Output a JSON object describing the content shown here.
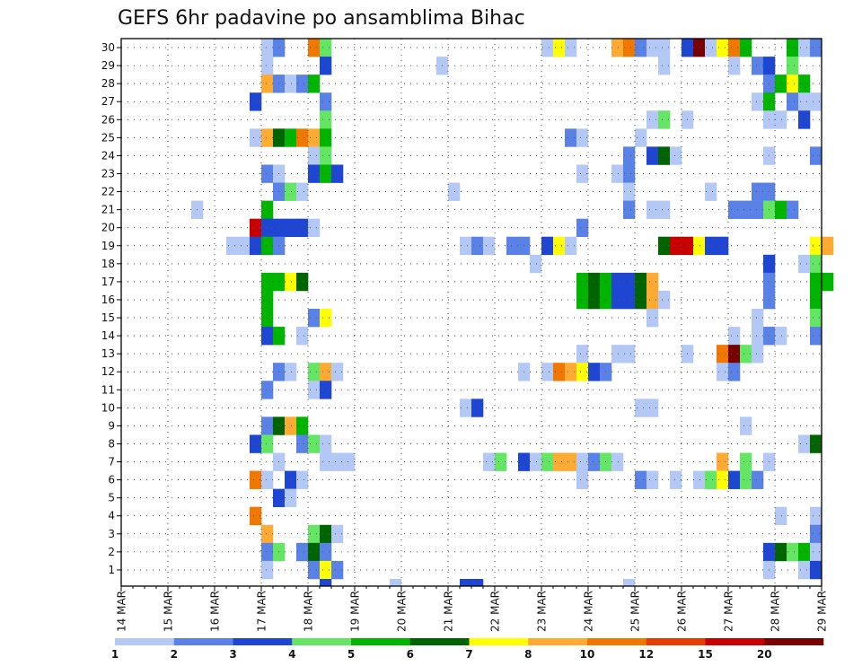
{
  "chart_data": {
    "type": "heatmap",
    "title": "GEFS 6hr padavine po ansamblima Bihac",
    "xlabel": "",
    "ylabel": "",
    "y_members": [
      "1",
      "2",
      "3",
      "4",
      "5",
      "6",
      "7",
      "8",
      "9",
      "10",
      "11",
      "12",
      "13",
      "14",
      "15",
      "16",
      "17",
      "18",
      "19",
      "20",
      "21",
      "22",
      "23",
      "24",
      "25",
      "26",
      "27",
      "28",
      "29",
      "30"
    ],
    "x_tick_labels": [
      "14 MAR",
      "15 MAR",
      "16 MAR",
      "17 MAR",
      "18 MAR",
      "19 MAR",
      "20 MAR",
      "21 MAR",
      "22 MAR",
      "23 MAR",
      "24 MAR",
      "25 MAR",
      "26 MAR",
      "27 MAR",
      "28 MAR",
      "29 MAR"
    ],
    "steps_per_day": 4,
    "legend": {
      "thresholds": [
        "1",
        "2",
        "3",
        "4",
        "5",
        "6",
        "7",
        "8",
        "10",
        "12",
        "15",
        "20"
      ],
      "colors": [
        "#b4c8f5",
        "#5a82e6",
        "#1e46d2",
        "#64e664",
        "#00b400",
        "#006400",
        "#ffff00",
        "#ffaa32",
        "#f07800",
        "#e63c00",
        "#c80000",
        "#780000"
      ]
    },
    "cells": [
      [
        30,
        12,
        1
      ],
      [
        30,
        13,
        2
      ],
      [
        30,
        16,
        9
      ],
      [
        30,
        17,
        4
      ],
      [
        30,
        36,
        1
      ],
      [
        30,
        37,
        7
      ],
      [
        30,
        38,
        1
      ],
      [
        30,
        42,
        8
      ],
      [
        30,
        43,
        9
      ],
      [
        30,
        44,
        2
      ],
      [
        30,
        45,
        1
      ],
      [
        30,
        46,
        1
      ],
      [
        30,
        48,
        3
      ],
      [
        30,
        49,
        12
      ],
      [
        30,
        50,
        1
      ],
      [
        30,
        51,
        7
      ],
      [
        30,
        52,
        9
      ],
      [
        30,
        53,
        5
      ],
      [
        30,
        57,
        5
      ],
      [
        30,
        58,
        1
      ],
      [
        30,
        59,
        2
      ],
      [
        29,
        12,
        1
      ],
      [
        29,
        17,
        3
      ],
      [
        29,
        27,
        1
      ],
      [
        29,
        46,
        1
      ],
      [
        29,
        52,
        1
      ],
      [
        29,
        54,
        2
      ],
      [
        29,
        55,
        3
      ],
      [
        29,
        57,
        4
      ],
      [
        28,
        12,
        8
      ],
      [
        28,
        13,
        2
      ],
      [
        28,
        14,
        1
      ],
      [
        28,
        15,
        2
      ],
      [
        28,
        16,
        5
      ],
      [
        28,
        55,
        2
      ],
      [
        28,
        56,
        5
      ],
      [
        28,
        57,
        7
      ],
      [
        28,
        58,
        5
      ],
      [
        27,
        11,
        3
      ],
      [
        27,
        17,
        2
      ],
      [
        27,
        54,
        1
      ],
      [
        27,
        55,
        5
      ],
      [
        27,
        57,
        2
      ],
      [
        27,
        58,
        1
      ],
      [
        27,
        59,
        1
      ],
      [
        26,
        17,
        4
      ],
      [
        26,
        45,
        1
      ],
      [
        26,
        46,
        4
      ],
      [
        26,
        48,
        1
      ],
      [
        26,
        55,
        1
      ],
      [
        26,
        56,
        1
      ],
      [
        26,
        58,
        3
      ],
      [
        25,
        11,
        1
      ],
      [
        25,
        12,
        8
      ],
      [
        25,
        13,
        6
      ],
      [
        25,
        14,
        5
      ],
      [
        25,
        15,
        9
      ],
      [
        25,
        16,
        8
      ],
      [
        25,
        17,
        5
      ],
      [
        25,
        38,
        2
      ],
      [
        25,
        39,
        1
      ],
      [
        25,
        44,
        1
      ],
      [
        24,
        16,
        1
      ],
      [
        24,
        17,
        4
      ],
      [
        24,
        43,
        2
      ],
      [
        24,
        45,
        3
      ],
      [
        24,
        46,
        6
      ],
      [
        24,
        47,
        1
      ],
      [
        24,
        55,
        1
      ],
      [
        24,
        59,
        2
      ],
      [
        23,
        12,
        2
      ],
      [
        23,
        13,
        1
      ],
      [
        23,
        16,
        3
      ],
      [
        23,
        17,
        5
      ],
      [
        23,
        18,
        3
      ],
      [
        23,
        39,
        1
      ],
      [
        23,
        42,
        1
      ],
      [
        23,
        43,
        2
      ],
      [
        22,
        13,
        2
      ],
      [
        22,
        14,
        4
      ],
      [
        22,
        15,
        1
      ],
      [
        22,
        28,
        1
      ],
      [
        22,
        43,
        1
      ],
      [
        22,
        50,
        1
      ],
      [
        22,
        54,
        2
      ],
      [
        22,
        55,
        2
      ],
      [
        21,
        6,
        1
      ],
      [
        21,
        12,
        5
      ],
      [
        21,
        43,
        2
      ],
      [
        21,
        45,
        1
      ],
      [
        21,
        46,
        1
      ],
      [
        21,
        52,
        2
      ],
      [
        21,
        53,
        2
      ],
      [
        21,
        54,
        2
      ],
      [
        21,
        55,
        4
      ],
      [
        21,
        56,
        5
      ],
      [
        21,
        57,
        2
      ],
      [
        20,
        11,
        11
      ],
      [
        20,
        12,
        3
      ],
      [
        20,
        13,
        3
      ],
      [
        20,
        14,
        3
      ],
      [
        20,
        15,
        3
      ],
      [
        20,
        16,
        1
      ],
      [
        20,
        39,
        2
      ],
      [
        19,
        9,
        1
      ],
      [
        19,
        10,
        1
      ],
      [
        19,
        11,
        3
      ],
      [
        19,
        12,
        5
      ],
      [
        19,
        13,
        2
      ],
      [
        19,
        29,
        1
      ],
      [
        19,
        30,
        2
      ],
      [
        19,
        31,
        1
      ],
      [
        19,
        33,
        2
      ],
      [
        19,
        34,
        2
      ],
      [
        19,
        36,
        3
      ],
      [
        19,
        37,
        7
      ],
      [
        19,
        38,
        1
      ],
      [
        19,
        46,
        6
      ],
      [
        19,
        47,
        11
      ],
      [
        19,
        48,
        11
      ],
      [
        19,
        49,
        7
      ],
      [
        19,
        50,
        3
      ],
      [
        19,
        51,
        3
      ],
      [
        19,
        59,
        7
      ],
      [
        19,
        60,
        8
      ],
      [
        18,
        35,
        1
      ],
      [
        18,
        55,
        3
      ],
      [
        18,
        58,
        1
      ],
      [
        18,
        59,
        4
      ],
      [
        17,
        12,
        5
      ],
      [
        17,
        13,
        5
      ],
      [
        17,
        14,
        7
      ],
      [
        17,
        15,
        6
      ],
      [
        17,
        39,
        5
      ],
      [
        17,
        40,
        6
      ],
      [
        17,
        41,
        5
      ],
      [
        17,
        42,
        3
      ],
      [
        17,
        43,
        3
      ],
      [
        17,
        44,
        6
      ],
      [
        17,
        45,
        8
      ],
      [
        17,
        55,
        2
      ],
      [
        17,
        59,
        5
      ],
      [
        17,
        60,
        5
      ],
      [
        16,
        12,
        5
      ],
      [
        16,
        39,
        5
      ],
      [
        16,
        40,
        6
      ],
      [
        16,
        41,
        5
      ],
      [
        16,
        42,
        3
      ],
      [
        16,
        43,
        3
      ],
      [
        16,
        44,
        6
      ],
      [
        16,
        45,
        8
      ],
      [
        16,
        46,
        1
      ],
      [
        16,
        55,
        2
      ],
      [
        16,
        59,
        5
      ],
      [
        15,
        12,
        5
      ],
      [
        15,
        16,
        2
      ],
      [
        15,
        17,
        7
      ],
      [
        15,
        45,
        1
      ],
      [
        15,
        54,
        1
      ],
      [
        15,
        59,
        4
      ],
      [
        14,
        12,
        3
      ],
      [
        14,
        13,
        5
      ],
      [
        14,
        15,
        1
      ],
      [
        14,
        52,
        1
      ],
      [
        14,
        54,
        1
      ],
      [
        14,
        55,
        2
      ],
      [
        14,
        56,
        1
      ],
      [
        14,
        59,
        2
      ],
      [
        13,
        39,
        1
      ],
      [
        13,
        42,
        1
      ],
      [
        13,
        43,
        1
      ],
      [
        13,
        48,
        1
      ],
      [
        13,
        51,
        9
      ],
      [
        13,
        52,
        12
      ],
      [
        13,
        53,
        4
      ],
      [
        13,
        54,
        1
      ],
      [
        12,
        13,
        2
      ],
      [
        12,
        14,
        1
      ],
      [
        12,
        16,
        4
      ],
      [
        12,
        17,
        8
      ],
      [
        12,
        18,
        1
      ],
      [
        12,
        34,
        1
      ],
      [
        12,
        36,
        1
      ],
      [
        12,
        37,
        9
      ],
      [
        12,
        38,
        8
      ],
      [
        12,
        39,
        7
      ],
      [
        12,
        40,
        3
      ],
      [
        12,
        41,
        2
      ],
      [
        12,
        51,
        1
      ],
      [
        12,
        52,
        2
      ],
      [
        11,
        12,
        2
      ],
      [
        11,
        16,
        1
      ],
      [
        11,
        17,
        3
      ],
      [
        10,
        29,
        1
      ],
      [
        10,
        30,
        3
      ],
      [
        10,
        44,
        1
      ],
      [
        10,
        45,
        1
      ],
      [
        9,
        12,
        2
      ],
      [
        9,
        13,
        6
      ],
      [
        9,
        14,
        8
      ],
      [
        9,
        15,
        5
      ],
      [
        9,
        53,
        1
      ],
      [
        8,
        11,
        3
      ],
      [
        8,
        12,
        4
      ],
      [
        8,
        15,
        2
      ],
      [
        8,
        16,
        4
      ],
      [
        8,
        17,
        1
      ],
      [
        8,
        58,
        1
      ],
      [
        8,
        59,
        6
      ],
      [
        7,
        13,
        1
      ],
      [
        7,
        17,
        1
      ],
      [
        7,
        18,
        1
      ],
      [
        7,
        19,
        1
      ],
      [
        7,
        31,
        1
      ],
      [
        7,
        32,
        4
      ],
      [
        7,
        34,
        3
      ],
      [
        7,
        35,
        1
      ],
      [
        7,
        36,
        4
      ],
      [
        7,
        37,
        8
      ],
      [
        7,
        38,
        8
      ],
      [
        7,
        39,
        1
      ],
      [
        7,
        40,
        2
      ],
      [
        7,
        41,
        4
      ],
      [
        7,
        42,
        1
      ],
      [
        7,
        51,
        8
      ],
      [
        7,
        53,
        4
      ],
      [
        7,
        55,
        1
      ],
      [
        6,
        11,
        9
      ],
      [
        6,
        12,
        1
      ],
      [
        6,
        14,
        3
      ],
      [
        6,
        15,
        1
      ],
      [
        6,
        39,
        1
      ],
      [
        6,
        44,
        2
      ],
      [
        6,
        45,
        1
      ],
      [
        6,
        47,
        1
      ],
      [
        6,
        49,
        1
      ],
      [
        6,
        50,
        4
      ],
      [
        6,
        51,
        7
      ],
      [
        6,
        52,
        3
      ],
      [
        6,
        53,
        4
      ],
      [
        6,
        54,
        2
      ],
      [
        5,
        13,
        3
      ],
      [
        5,
        14,
        1
      ],
      [
        4,
        11,
        9
      ],
      [
        4,
        56,
        1
      ],
      [
        4,
        59,
        1
      ],
      [
        3,
        12,
        8
      ],
      [
        3,
        16,
        4
      ],
      [
        3,
        17,
        6
      ],
      [
        3,
        18,
        1
      ],
      [
        3,
        59,
        2
      ],
      [
        2,
        12,
        2
      ],
      [
        2,
        13,
        4
      ],
      [
        2,
        15,
        2
      ],
      [
        2,
        16,
        6
      ],
      [
        2,
        17,
        2
      ],
      [
        2,
        55,
        3
      ],
      [
        2,
        56,
        6
      ],
      [
        2,
        57,
        4
      ],
      [
        2,
        58,
        5
      ],
      [
        2,
        59,
        1
      ],
      [
        1,
        12,
        1
      ],
      [
        1,
        16,
        2
      ],
      [
        1,
        17,
        7
      ],
      [
        1,
        18,
        2
      ],
      [
        1,
        55,
        1
      ],
      [
        1,
        58,
        1
      ],
      [
        1,
        59,
        3
      ],
      [
        0,
        17,
        3
      ],
      [
        0,
        23,
        1
      ],
      [
        0,
        29,
        3
      ],
      [
        0,
        30,
        3
      ],
      [
        0,
        43,
        1
      ]
    ]
  }
}
